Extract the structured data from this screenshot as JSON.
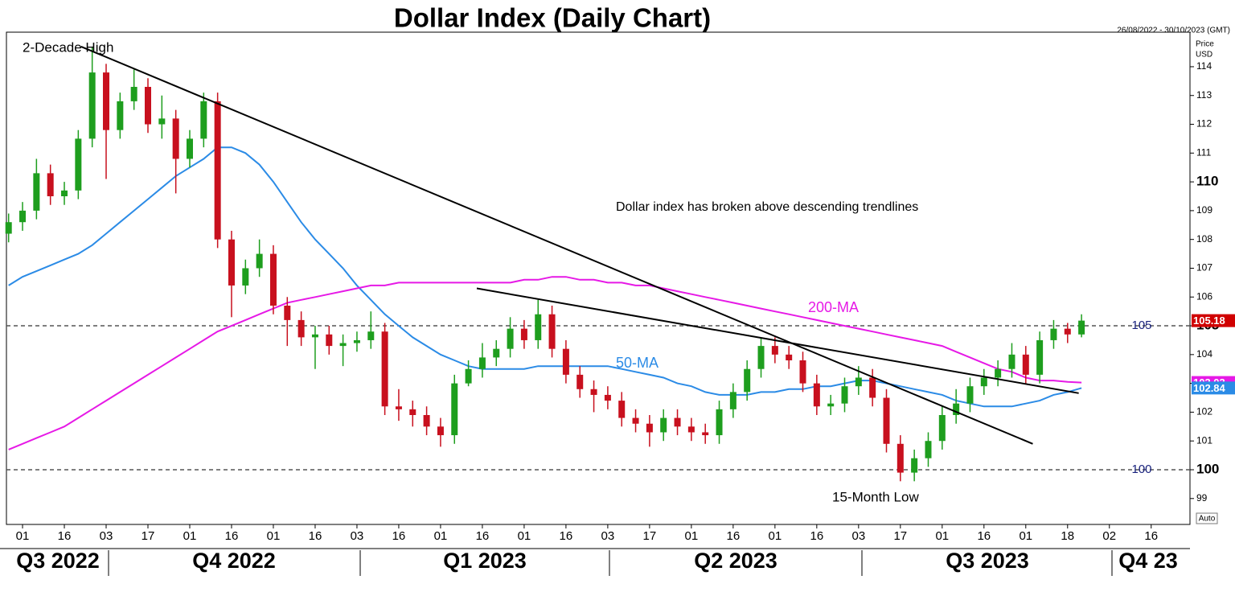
{
  "chart_data": {
    "type": "candlestick",
    "title": "Dollar Index  (Daily Chart)",
    "date_range": "26/08/2022 - 30/10/2023 (GMT)",
    "y_axis_label": [
      "Price",
      "USD"
    ],
    "scale_mode": "Auto",
    "categories": [
      null,
      "01",
      null,
      null,
      "16",
      null,
      null,
      "03",
      null,
      null,
      "17",
      null,
      null,
      "01",
      null,
      null,
      "16",
      null,
      null,
      "01",
      null,
      null,
      "16",
      null,
      null,
      "03",
      null,
      null,
      "16",
      null,
      null,
      "01",
      null,
      null,
      "16",
      null,
      null,
      "01",
      null,
      null,
      "16",
      null,
      null,
      "03",
      null,
      null,
      "17",
      null,
      null,
      "01",
      null,
      null,
      "16",
      null,
      null,
      "01",
      null,
      null,
      "16",
      null,
      null,
      "03",
      null,
      null,
      "17",
      null,
      null,
      "01",
      null,
      null,
      "16",
      null,
      null,
      "01",
      null,
      null,
      "18",
      null,
      null,
      "02",
      null,
      null,
      "16",
      null,
      null
    ],
    "quarters": [
      "Q3 2022",
      "Q4 2022",
      "Q1 2023",
      "Q2 2023",
      "Q3 2023",
      "Q4 23"
    ],
    "open": [
      108.2,
      108.6,
      109.0,
      110.3,
      109.5,
      109.7,
      111.5,
      113.8,
      111.8,
      112.8,
      113.3,
      112.0,
      112.2,
      110.8,
      111.5,
      112.8,
      108.0,
      106.4,
      107.0,
      107.5,
      105.7,
      105.2,
      104.6,
      104.7,
      104.3,
      104.4,
      104.5,
      104.8,
      102.2,
      102.1,
      101.9,
      101.5,
      101.2,
      103.0,
      103.5,
      103.9,
      104.2,
      104.9,
      104.5,
      105.4,
      104.2,
      103.3,
      102.8,
      102.6,
      102.4,
      101.8,
      101.6,
      101.3,
      101.8,
      101.5,
      101.3,
      101.2,
      102.1,
      102.7,
      103.5,
      104.3,
      104.0,
      103.8,
      103.0,
      102.2,
      102.3,
      102.9,
      103.2,
      102.5,
      100.9,
      99.9,
      100.4,
      101.0,
      101.9,
      102.3,
      102.9,
      103.2,
      103.5,
      104.0,
      103.3,
      104.5,
      104.9,
      104.7,
      null,
      null,
      null,
      null,
      null,
      null,
      null
    ],
    "high": [
      108.9,
      109.3,
      110.8,
      110.6,
      110.0,
      111.8,
      114.7,
      114.1,
      113.1,
      113.9,
      113.6,
      113.0,
      112.5,
      111.8,
      113.1,
      113.1,
      108.3,
      107.3,
      108.0,
      107.8,
      106.0,
      105.5,
      105.0,
      105.0,
      104.7,
      104.8,
      105.5,
      105.1,
      102.8,
      102.4,
      102.2,
      101.8,
      103.3,
      103.8,
      104.4,
      104.5,
      105.3,
      105.2,
      105.9,
      105.7,
      104.5,
      103.6,
      103.1,
      102.9,
      102.7,
      102.1,
      101.9,
      102.1,
      102.1,
      101.8,
      101.6,
      102.4,
      103.0,
      103.8,
      104.6,
      104.6,
      104.3,
      104.1,
      103.3,
      102.6,
      103.2,
      103.6,
      103.5,
      102.8,
      101.2,
      100.7,
      101.3,
      102.2,
      102.8,
      103.2,
      103.5,
      103.8,
      104.4,
      104.3,
      104.8,
      105.2,
      105.1,
      105.4,
      null,
      null,
      null,
      null,
      null,
      null,
      null
    ],
    "low": [
      107.9,
      108.3,
      108.7,
      109.2,
      109.2,
      109.4,
      111.2,
      110.1,
      111.5,
      112.5,
      111.7,
      111.5,
      109.6,
      110.5,
      111.2,
      107.7,
      105.3,
      106.1,
      106.7,
      105.4,
      104.3,
      104.3,
      103.5,
      104.0,
      103.6,
      104.1,
      104.2,
      101.9,
      101.7,
      101.5,
      101.2,
      100.8,
      100.9,
      102.9,
      103.2,
      103.6,
      103.9,
      104.2,
      104.2,
      103.9,
      103.0,
      102.5,
      102.0,
      102.1,
      101.5,
      101.3,
      100.8,
      101.0,
      101.2,
      101.0,
      100.9,
      100.9,
      101.8,
      102.4,
      103.2,
      103.7,
      103.5,
      102.7,
      101.9,
      101.9,
      102.0,
      102.6,
      102.2,
      100.6,
      99.6,
      99.6,
      100.1,
      100.7,
      101.6,
      102.0,
      102.6,
      102.9,
      103.2,
      103.0,
      103.0,
      104.2,
      104.4,
      104.6,
      null,
      null,
      null,
      null,
      null,
      null,
      null
    ],
    "close": [
      108.6,
      109.0,
      110.3,
      109.5,
      109.7,
      111.5,
      113.8,
      111.8,
      112.8,
      113.3,
      112.0,
      112.2,
      110.8,
      111.5,
      112.8,
      108.0,
      106.4,
      107.0,
      107.5,
      105.7,
      105.2,
      104.6,
      104.7,
      104.3,
      104.4,
      104.5,
      104.8,
      102.2,
      102.1,
      101.9,
      101.5,
      101.2,
      103.0,
      103.5,
      103.9,
      104.2,
      104.9,
      104.5,
      105.4,
      104.2,
      103.3,
      102.8,
      102.6,
      102.4,
      101.8,
      101.6,
      101.3,
      101.8,
      101.5,
      101.3,
      101.2,
      102.1,
      102.7,
      103.5,
      104.3,
      104.0,
      103.8,
      103.0,
      102.2,
      102.3,
      102.9,
      103.2,
      102.5,
      100.9,
      99.9,
      100.4,
      101.0,
      101.9,
      102.3,
      102.9,
      103.2,
      103.5,
      104.0,
      103.3,
      104.5,
      104.9,
      104.7,
      105.18,
      null,
      null,
      null,
      null,
      null,
      null,
      null
    ],
    "up_color": "#1e9e1e",
    "down_color": "#c8101e",
    "last_color": "#d00000",
    "series": [
      {
        "name": "50-MA",
        "color": "#2b8be6",
        "values": [
          106.4,
          106.7,
          106.9,
          107.1,
          107.3,
          107.5,
          107.8,
          108.2,
          108.6,
          109.0,
          109.4,
          109.8,
          110.2,
          110.5,
          110.8,
          111.2,
          111.2,
          111.0,
          110.6,
          110.0,
          109.3,
          108.6,
          108.0,
          107.5,
          107.0,
          106.4,
          105.9,
          105.4,
          105.0,
          104.6,
          104.3,
          104.0,
          103.8,
          103.6,
          103.5,
          103.5,
          103.5,
          103.5,
          103.6,
          103.6,
          103.6,
          103.6,
          103.6,
          103.6,
          103.5,
          103.4,
          103.3,
          103.2,
          103.0,
          102.9,
          102.7,
          102.6,
          102.6,
          102.6,
          102.7,
          102.7,
          102.8,
          102.8,
          102.9,
          102.9,
          103.0,
          103.1,
          103.1,
          103.0,
          102.9,
          102.8,
          102.7,
          102.6,
          102.4,
          102.3,
          102.2,
          102.2,
          102.2,
          102.3,
          102.4,
          102.6,
          102.7,
          102.84,
          null,
          null,
          null,
          null,
          null,
          null,
          null
        ]
      },
      {
        "name": "200-MA",
        "color": "#e619e6",
        "values": [
          100.7,
          100.9,
          101.1,
          101.3,
          101.5,
          101.8,
          102.1,
          102.4,
          102.7,
          103.0,
          103.3,
          103.6,
          103.9,
          104.2,
          104.5,
          104.8,
          105.0,
          105.2,
          105.4,
          105.6,
          105.8,
          105.9,
          106.0,
          106.1,
          106.2,
          106.3,
          106.4,
          106.4,
          106.5,
          106.5,
          106.5,
          106.5,
          106.5,
          106.5,
          106.5,
          106.5,
          106.5,
          106.6,
          106.6,
          106.7,
          106.7,
          106.6,
          106.6,
          106.5,
          106.5,
          106.4,
          106.4,
          106.3,
          106.2,
          106.1,
          106.0,
          105.9,
          105.8,
          105.7,
          105.6,
          105.5,
          105.4,
          105.3,
          105.2,
          105.1,
          105.0,
          104.9,
          104.8,
          104.7,
          104.6,
          104.5,
          104.4,
          104.3,
          104.1,
          103.9,
          103.7,
          103.5,
          103.4,
          103.2,
          103.1,
          103.1,
          103.05,
          103.03,
          null,
          null,
          null,
          null,
          null,
          null,
          null
        ]
      }
    ],
    "trendlines": [
      {
        "x": [
          5.2,
          73.5
        ],
        "y": [
          114.7,
          100.9
        ]
      },
      {
        "x": [
          33.6,
          76.8
        ],
        "y": [
          106.3,
          102.66
        ]
      }
    ],
    "hlines": [
      100,
      105
    ],
    "annotations": [
      "2-Decade High",
      "Dollar index has broken above descending trendlines",
      "200-MA",
      "50-MA",
      "15-Month Low"
    ],
    "ylim": [
      98.1,
      115.2
    ],
    "yticks": [
      99,
      100,
      101,
      102,
      103,
      104,
      105,
      106,
      107,
      108,
      109,
      110,
      111,
      112,
      113,
      114
    ]
  }
}
